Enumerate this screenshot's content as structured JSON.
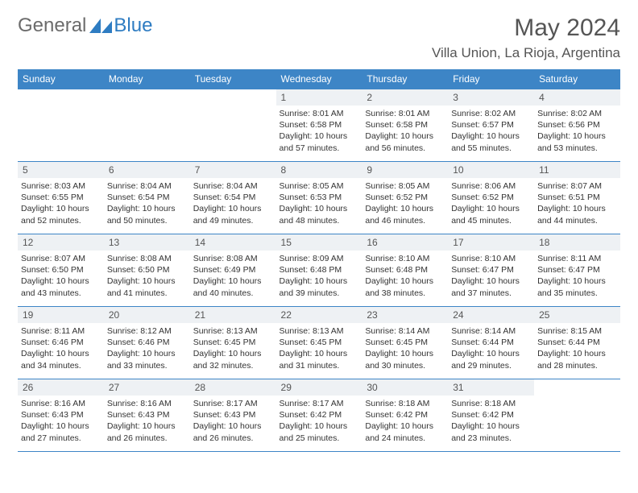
{
  "logo": {
    "general": "General",
    "blue": "Blue"
  },
  "title": "May 2024",
  "location": "Villa Union, La Rioja, Argentina",
  "colors": {
    "header_bg": "#3d85c6",
    "daynum_bg": "#eef1f4",
    "text": "#333"
  },
  "weekdays": [
    "Sunday",
    "Monday",
    "Tuesday",
    "Wednesday",
    "Thursday",
    "Friday",
    "Saturday"
  ],
  "weeks": [
    [
      null,
      null,
      null,
      {
        "n": "1",
        "sr": "8:01 AM",
        "ss": "6:58 PM",
        "dl": "10 hours and 57 minutes."
      },
      {
        "n": "2",
        "sr": "8:01 AM",
        "ss": "6:58 PM",
        "dl": "10 hours and 56 minutes."
      },
      {
        "n": "3",
        "sr": "8:02 AM",
        "ss": "6:57 PM",
        "dl": "10 hours and 55 minutes."
      },
      {
        "n": "4",
        "sr": "8:02 AM",
        "ss": "6:56 PM",
        "dl": "10 hours and 53 minutes."
      }
    ],
    [
      {
        "n": "5",
        "sr": "8:03 AM",
        "ss": "6:55 PM",
        "dl": "10 hours and 52 minutes."
      },
      {
        "n": "6",
        "sr": "8:04 AM",
        "ss": "6:54 PM",
        "dl": "10 hours and 50 minutes."
      },
      {
        "n": "7",
        "sr": "8:04 AM",
        "ss": "6:54 PM",
        "dl": "10 hours and 49 minutes."
      },
      {
        "n": "8",
        "sr": "8:05 AM",
        "ss": "6:53 PM",
        "dl": "10 hours and 48 minutes."
      },
      {
        "n": "9",
        "sr": "8:05 AM",
        "ss": "6:52 PM",
        "dl": "10 hours and 46 minutes."
      },
      {
        "n": "10",
        "sr": "8:06 AM",
        "ss": "6:52 PM",
        "dl": "10 hours and 45 minutes."
      },
      {
        "n": "11",
        "sr": "8:07 AM",
        "ss": "6:51 PM",
        "dl": "10 hours and 44 minutes."
      }
    ],
    [
      {
        "n": "12",
        "sr": "8:07 AM",
        "ss": "6:50 PM",
        "dl": "10 hours and 43 minutes."
      },
      {
        "n": "13",
        "sr": "8:08 AM",
        "ss": "6:50 PM",
        "dl": "10 hours and 41 minutes."
      },
      {
        "n": "14",
        "sr": "8:08 AM",
        "ss": "6:49 PM",
        "dl": "10 hours and 40 minutes."
      },
      {
        "n": "15",
        "sr": "8:09 AM",
        "ss": "6:48 PM",
        "dl": "10 hours and 39 minutes."
      },
      {
        "n": "16",
        "sr": "8:10 AM",
        "ss": "6:48 PM",
        "dl": "10 hours and 38 minutes."
      },
      {
        "n": "17",
        "sr": "8:10 AM",
        "ss": "6:47 PM",
        "dl": "10 hours and 37 minutes."
      },
      {
        "n": "18",
        "sr": "8:11 AM",
        "ss": "6:47 PM",
        "dl": "10 hours and 35 minutes."
      }
    ],
    [
      {
        "n": "19",
        "sr": "8:11 AM",
        "ss": "6:46 PM",
        "dl": "10 hours and 34 minutes."
      },
      {
        "n": "20",
        "sr": "8:12 AM",
        "ss": "6:46 PM",
        "dl": "10 hours and 33 minutes."
      },
      {
        "n": "21",
        "sr": "8:13 AM",
        "ss": "6:45 PM",
        "dl": "10 hours and 32 minutes."
      },
      {
        "n": "22",
        "sr": "8:13 AM",
        "ss": "6:45 PM",
        "dl": "10 hours and 31 minutes."
      },
      {
        "n": "23",
        "sr": "8:14 AM",
        "ss": "6:45 PM",
        "dl": "10 hours and 30 minutes."
      },
      {
        "n": "24",
        "sr": "8:14 AM",
        "ss": "6:44 PM",
        "dl": "10 hours and 29 minutes."
      },
      {
        "n": "25",
        "sr": "8:15 AM",
        "ss": "6:44 PM",
        "dl": "10 hours and 28 minutes."
      }
    ],
    [
      {
        "n": "26",
        "sr": "8:16 AM",
        "ss": "6:43 PM",
        "dl": "10 hours and 27 minutes."
      },
      {
        "n": "27",
        "sr": "8:16 AM",
        "ss": "6:43 PM",
        "dl": "10 hours and 26 minutes."
      },
      {
        "n": "28",
        "sr": "8:17 AM",
        "ss": "6:43 PM",
        "dl": "10 hours and 26 minutes."
      },
      {
        "n": "29",
        "sr": "8:17 AM",
        "ss": "6:42 PM",
        "dl": "10 hours and 25 minutes."
      },
      {
        "n": "30",
        "sr": "8:18 AM",
        "ss": "6:42 PM",
        "dl": "10 hours and 24 minutes."
      },
      {
        "n": "31",
        "sr": "8:18 AM",
        "ss": "6:42 PM",
        "dl": "10 hours and 23 minutes."
      },
      null
    ]
  ]
}
